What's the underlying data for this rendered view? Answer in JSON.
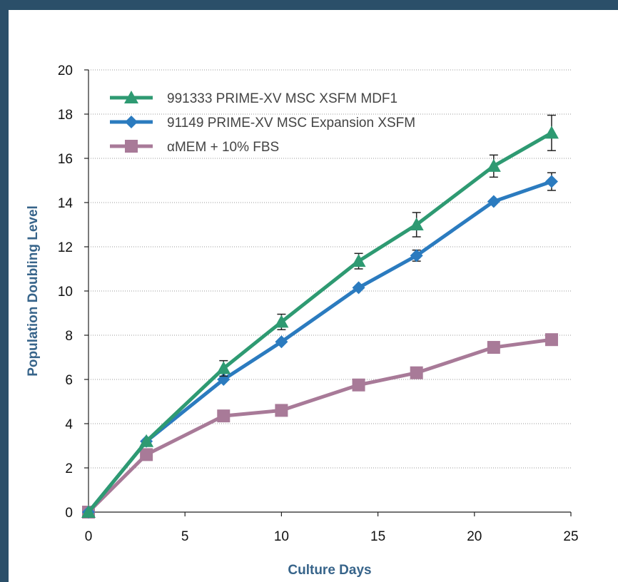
{
  "chart_data": {
    "type": "line",
    "xlabel": "Culture Days",
    "ylabel": "Population Doubling Level",
    "xlim": [
      0,
      25
    ],
    "ylim": [
      0,
      20
    ],
    "x_ticks": [
      0,
      5,
      10,
      15,
      20,
      25
    ],
    "y_ticks": [
      0,
      2,
      4,
      6,
      8,
      10,
      12,
      14,
      16,
      18,
      20
    ],
    "grid": "horizontal dotted",
    "legend_position": "top-left",
    "series": [
      {
        "name": "991333 PRIME-XV MSC XSFM MDF1",
        "color": "#2e9a72",
        "marker": "triangle",
        "x": [
          0,
          3,
          7,
          10,
          14,
          17,
          21,
          24
        ],
        "y": [
          0,
          3.2,
          6.5,
          8.6,
          11.35,
          13.0,
          15.65,
          17.15
        ],
        "error": [
          0,
          0,
          0.35,
          0.35,
          0.35,
          0.55,
          0.5,
          0.8
        ]
      },
      {
        "name": "91149 PRIME-XV MSC Expansion XSFM",
        "color": "#2b7bbf",
        "marker": "diamond",
        "x": [
          0,
          3,
          7,
          10,
          14,
          17,
          21,
          24
        ],
        "y": [
          0,
          3.2,
          6.0,
          7.7,
          10.15,
          11.6,
          14.05,
          14.95
        ],
        "error": [
          0,
          0,
          0,
          0,
          0,
          0.25,
          0,
          0.4
        ]
      },
      {
        "name": "αMEM + 10% FBS",
        "color": "#a87a98",
        "marker": "square",
        "x": [
          0,
          3,
          7,
          10,
          14,
          17,
          21,
          24
        ],
        "y": [
          0,
          2.6,
          4.35,
          4.6,
          5.75,
          6.3,
          7.45,
          7.8
        ],
        "error": [
          0,
          0,
          0,
          0,
          0,
          0,
          0,
          0
        ]
      }
    ]
  }
}
